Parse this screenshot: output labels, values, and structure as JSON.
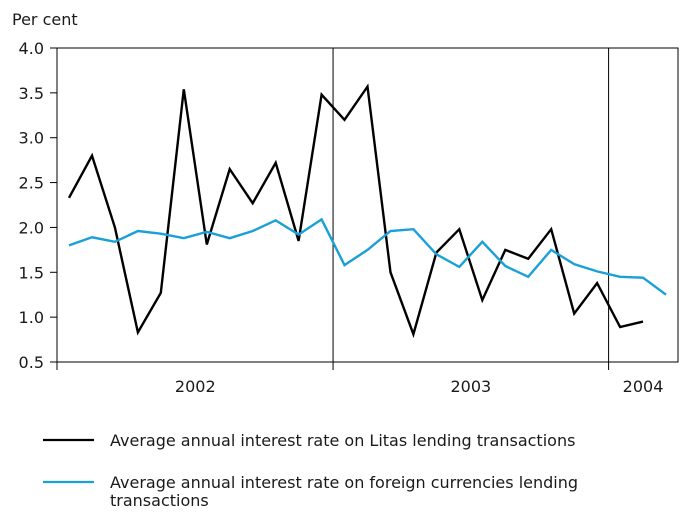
{
  "chart_data": {
    "type": "line",
    "ylabel": "Per cent",
    "ylim": [
      0.5,
      4.0
    ],
    "yticks": [
      "4.0",
      "3.5",
      "3.0",
      "2.5",
      "2.0",
      "1.5",
      "1.0",
      "0.5"
    ],
    "ytick_values": [
      4.0,
      3.5,
      3.0,
      2.5,
      2.0,
      1.5,
      1.0,
      0.5
    ],
    "x": [
      "2002-01",
      "2002-02",
      "2002-03",
      "2002-04",
      "2002-05",
      "2002-06",
      "2002-07",
      "2002-08",
      "2002-09",
      "2002-10",
      "2002-11",
      "2002-12",
      "2003-01",
      "2003-02",
      "2003-03",
      "2003-04",
      "2003-05",
      "2003-06",
      "2003-07",
      "2003-08",
      "2003-09",
      "2003-10",
      "2003-11",
      "2003-12",
      "2004-01",
      "2004-02",
      "2004-03"
    ],
    "year_labels": [
      {
        "label": "2002",
        "months": [
          "2002-01",
          "2002-12"
        ]
      },
      {
        "label": "2003",
        "months": [
          "2003-01",
          "2003-12"
        ]
      },
      {
        "label": "2004",
        "months": [
          "2004-01",
          "2004-03"
        ]
      }
    ],
    "grid": false,
    "legend_position": "bottom",
    "series": [
      {
        "name": "Average annual interest rate on Litas lending transactions",
        "color": "#000000",
        "values": [
          2.33,
          2.8,
          2.0,
          0.83,
          1.27,
          3.54,
          1.81,
          2.65,
          2.27,
          2.72,
          1.85,
          3.48,
          3.2,
          3.57,
          1.5,
          0.81,
          1.72,
          1.98,
          1.19,
          1.75,
          1.65,
          1.98,
          1.04,
          1.38,
          0.89,
          0.95,
          null
        ]
      },
      {
        "name": "Average annual interest rate on foreign currencies lending",
        "name_line2": "transactions",
        "color": "#1aa0d8",
        "values": [
          1.8,
          1.89,
          1.84,
          1.96,
          1.93,
          1.88,
          1.95,
          1.88,
          1.96,
          2.08,
          1.92,
          2.09,
          1.58,
          1.75,
          1.96,
          1.98,
          1.7,
          1.56,
          1.84,
          1.57,
          1.45,
          1.75,
          1.59,
          1.51,
          1.45,
          1.44,
          1.25
        ]
      }
    ]
  }
}
